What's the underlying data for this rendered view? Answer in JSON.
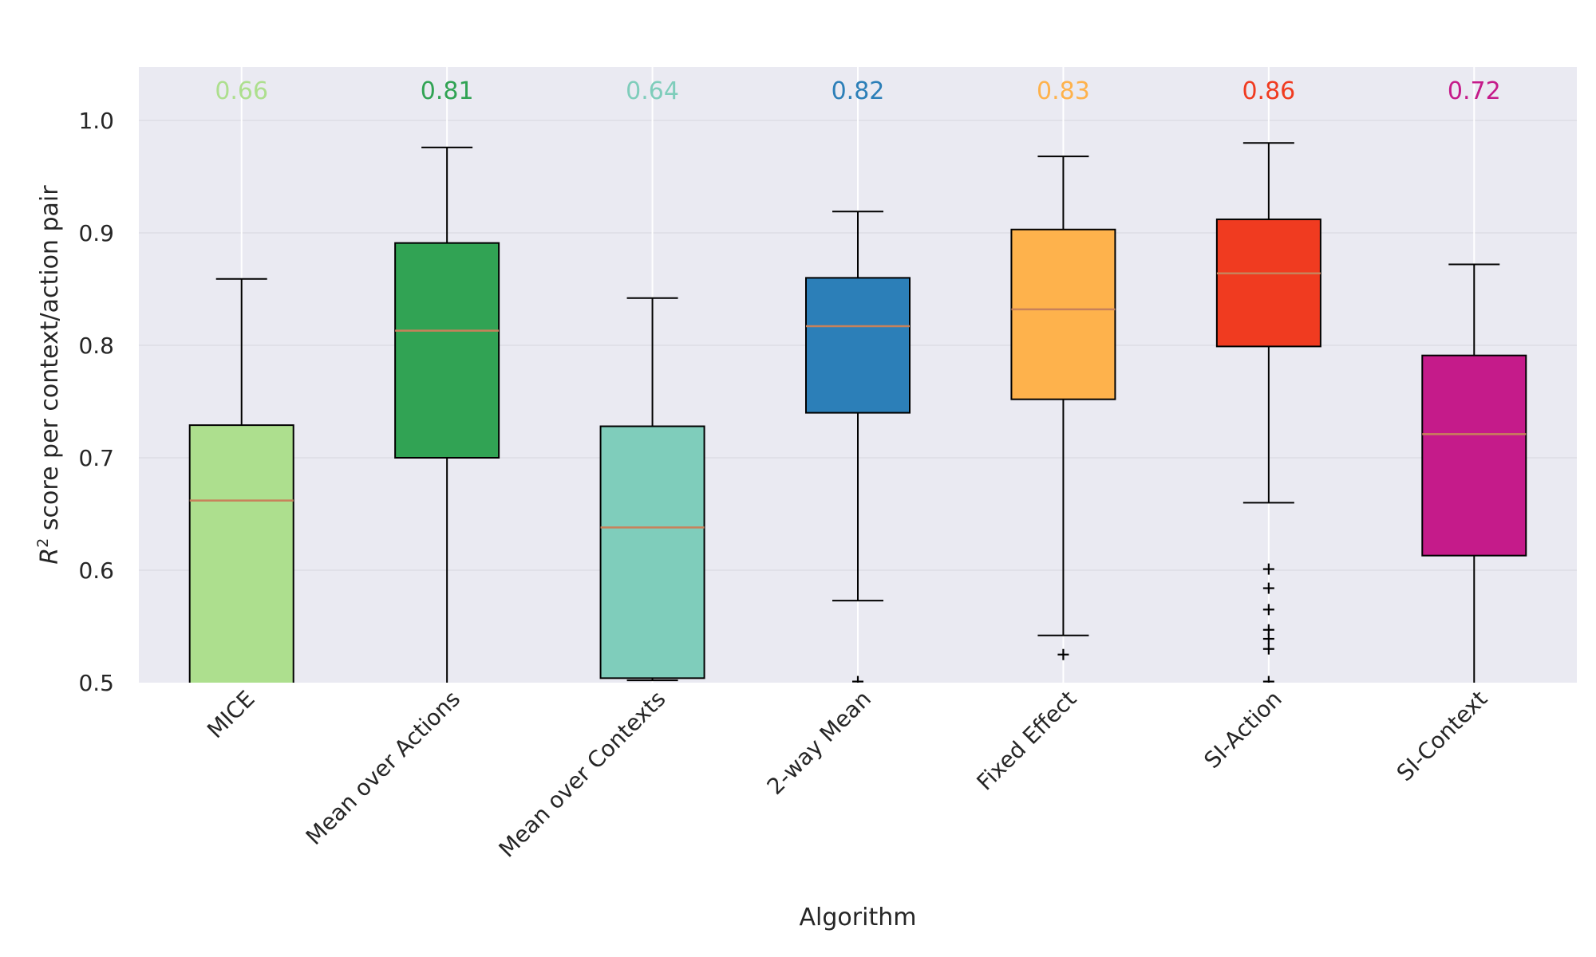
{
  "chart_data": {
    "type": "box",
    "xlabel": "Algorithm",
    "ylabel_main": "R",
    "ylabel_sup": "2",
    "ylabel_rest": " score per context/action pair",
    "ylim": [
      0.5,
      1.05
    ],
    "yticks": [
      "0.5",
      "0.6",
      "0.7",
      "0.8",
      "0.9",
      "1.0"
    ],
    "grid": true,
    "background": "#eaeaf2",
    "median_line_color": "#c8815a",
    "series": [
      {
        "name": "MICE",
        "color": "#addf8e",
        "median_label": "0.66",
        "whisker_low": 0.44,
        "q1": 0.44,
        "median": 0.662,
        "q3": 0.729,
        "whisker_high": 0.859,
        "outliers": []
      },
      {
        "name": "Mean over Actions",
        "color": "#31a354",
        "median_label": "0.81",
        "whisker_low": 0.44,
        "q1": 0.7,
        "median": 0.813,
        "q3": 0.891,
        "whisker_high": 0.976,
        "outliers": []
      },
      {
        "name": "Mean over Contexts",
        "color": "#7fcdbb",
        "median_label": "0.64",
        "whisker_low": 0.502,
        "q1": 0.504,
        "median": 0.638,
        "q3": 0.728,
        "whisker_high": 0.842,
        "outliers": []
      },
      {
        "name": "2-way Mean",
        "color": "#2c7fb8",
        "median_label": "0.82",
        "whisker_low": 0.573,
        "q1": 0.74,
        "median": 0.817,
        "q3": 0.86,
        "whisker_high": 0.919,
        "outliers": [
          0.501
        ]
      },
      {
        "name": "Fixed Effect",
        "color": "#feb24c",
        "median_label": "0.83",
        "whisker_low": 0.542,
        "q1": 0.752,
        "median": 0.832,
        "q3": 0.903,
        "whisker_high": 0.968,
        "outliers": [
          0.525
        ]
      },
      {
        "name": "SI-Action",
        "color": "#f03b20",
        "median_label": "0.86",
        "whisker_low": 0.66,
        "q1": 0.799,
        "median": 0.864,
        "q3": 0.912,
        "whisker_high": 0.98,
        "outliers": [
          0.601,
          0.584,
          0.565,
          0.547,
          0.539,
          0.53,
          0.501
        ]
      },
      {
        "name": "SI-Context",
        "color": "#c51b8a",
        "median_label": "0.72",
        "whisker_low": 0.44,
        "q1": 0.613,
        "median": 0.721,
        "q3": 0.791,
        "whisker_high": 0.872,
        "outliers": []
      }
    ]
  }
}
